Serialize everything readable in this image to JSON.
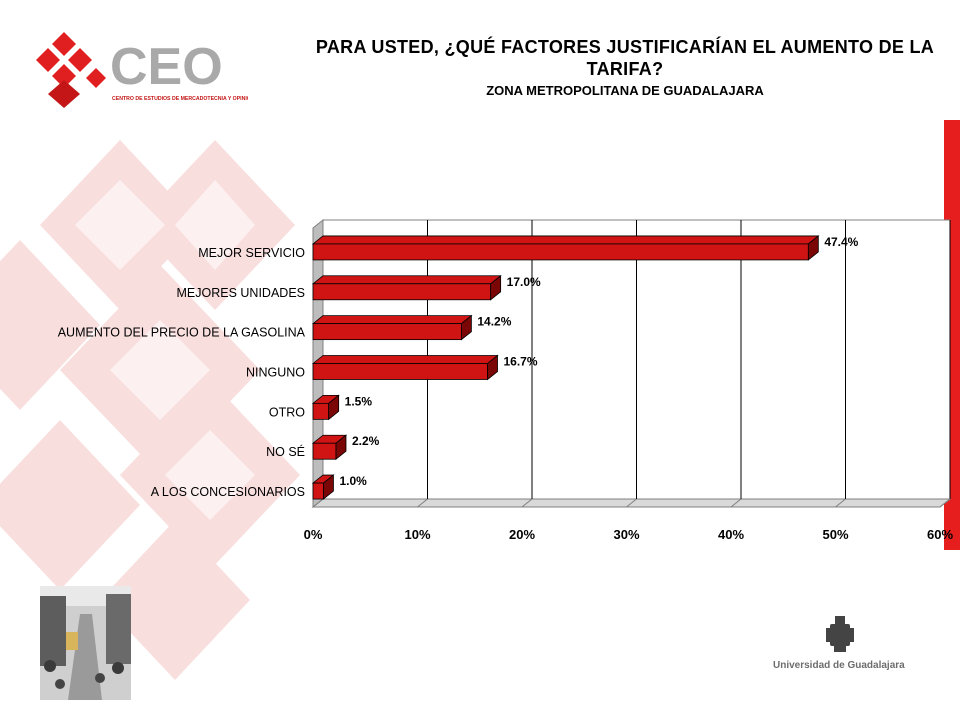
{
  "header": {
    "title": "PARA USTED, ¿QUÉ FACTORES JUSTIFICARÍAN EL AUMENTO DE LA TARIFA?",
    "subtitle": "ZONA METROPOLITANA DE GUADALAJARA"
  },
  "logo": {
    "name": "CEO",
    "tagline": "CENTRO DE ESTUDIOS DE MERCADOTECNIA Y OPINIÓN"
  },
  "footer": {
    "university": "Universidad de Guadalajara"
  },
  "colors": {
    "bar": "#d01414",
    "bar_dark": "#7a0606",
    "accent": "#e61e1e"
  },
  "chart_data": {
    "type": "bar",
    "orientation": "horizontal",
    "categories": [
      "MEJOR SERVICIO",
      "MEJORES UNIDADES",
      "AUMENTO DEL PRECIO DE LA GASOLINA",
      "NINGUNO",
      "OTRO",
      "NO SÉ",
      "A LOS CONCESIONARIOS"
    ],
    "values": [
      47.4,
      17.0,
      14.2,
      16.7,
      1.5,
      2.2,
      1.0
    ],
    "value_labels": [
      "47.4%",
      "17.0%",
      "14.2%",
      "16.7%",
      "1.5%",
      "2.2%",
      "1.0%"
    ],
    "xlim": [
      0,
      60
    ],
    "xticks": [
      "0%",
      "10%",
      "20%",
      "30%",
      "40%",
      "50%",
      "60%"
    ],
    "grid": true,
    "legend": "none"
  }
}
